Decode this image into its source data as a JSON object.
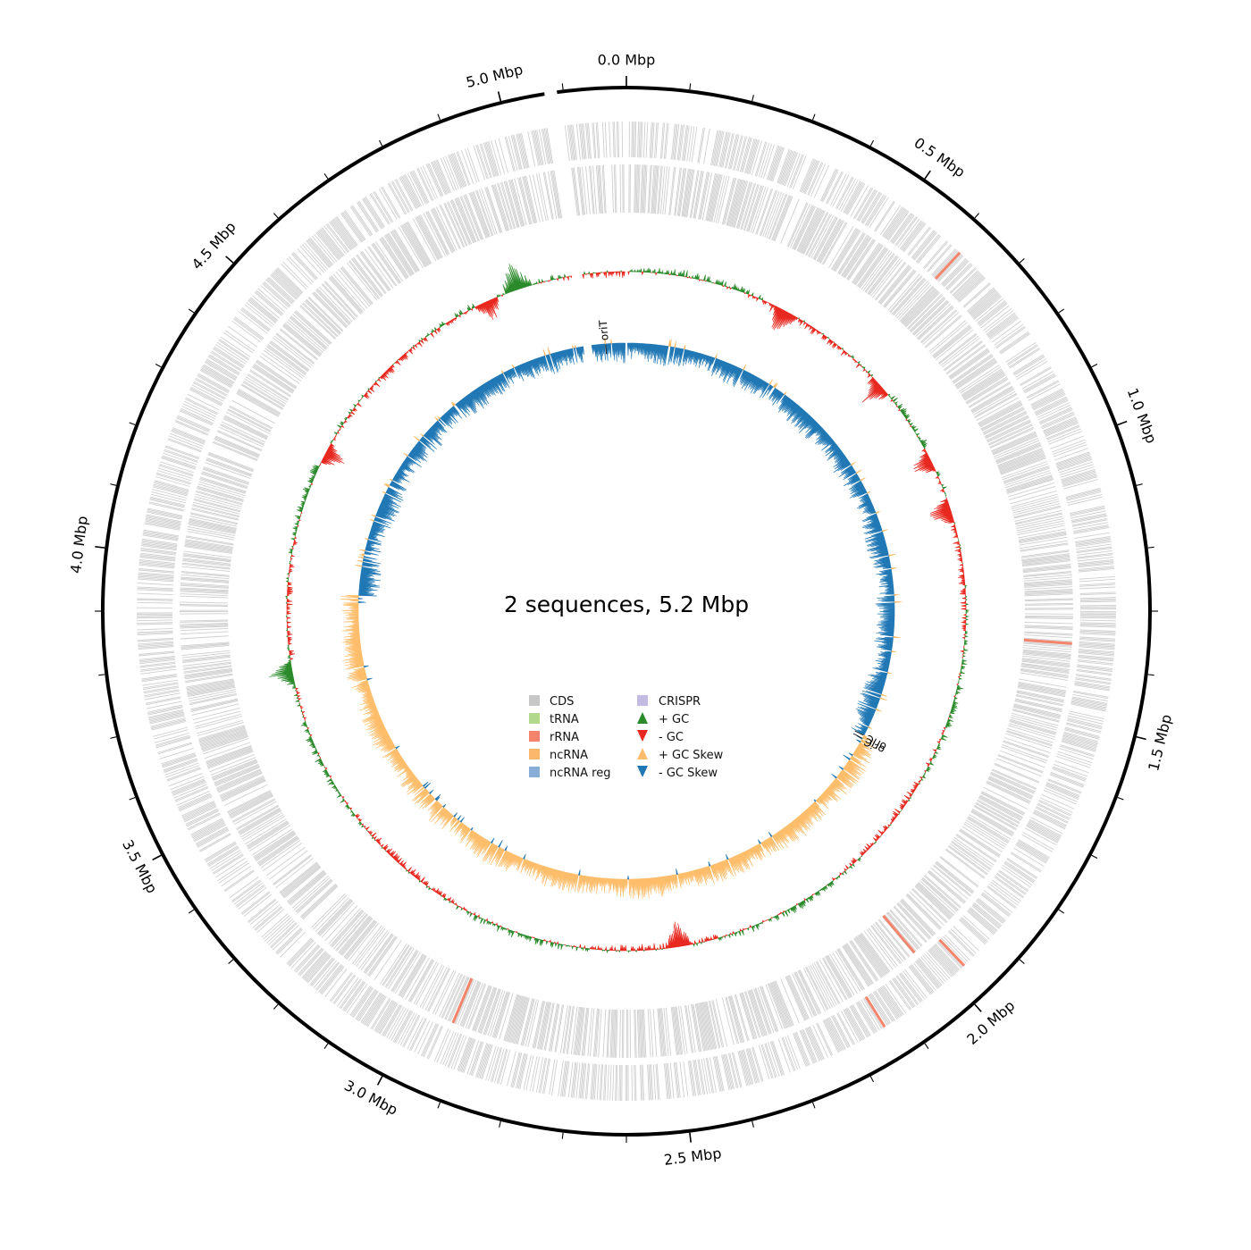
{
  "title": "2 sequences, 5.2 Mbp",
  "genome": {
    "sequence_count": 2,
    "total_size_mbp": 5.2,
    "contigs": [
      {
        "start_mbp": 0.0,
        "end_mbp": 5.07
      },
      {
        "start_mbp": 5.09,
        "end_mbp": 5.2
      }
    ]
  },
  "scale": {
    "major_ticks": [
      {
        "value": 0.0,
        "label": "0.0 Mbp"
      },
      {
        "value": 0.5,
        "label": "0.5 Mbp"
      },
      {
        "value": 1.0,
        "label": "1.0 Mbp"
      },
      {
        "value": 1.5,
        "label": "1.5 Mbp"
      },
      {
        "value": 2.0,
        "label": "2.0 Mbp"
      },
      {
        "value": 2.5,
        "label": "2.5 Mbp"
      },
      {
        "value": 3.0,
        "label": "3.0 Mbp"
      },
      {
        "value": 3.5,
        "label": "3.5 Mbp"
      },
      {
        "value": 4.0,
        "label": "4.0 Mbp"
      },
      {
        "value": 4.5,
        "label": "4.5 Mbp"
      },
      {
        "value": 5.0,
        "label": "5.0 Mbp"
      }
    ],
    "minor_tick_step_mbp": 0.1
  },
  "annotations": [
    {
      "label": "oriT",
      "position_mbp": 5.135
    },
    {
      "label": "oriC",
      "position_mbp": 1.7
    },
    {
      "label": "oriC",
      "position_mbp": 1.71
    }
  ],
  "legend": [
    {
      "label": "CDS",
      "marker": "square",
      "color": "#c7c7c7"
    },
    {
      "label": "tRNA",
      "marker": "square",
      "color": "#b2d88c"
    },
    {
      "label": "rRNA",
      "marker": "square",
      "color": "#f4846b"
    },
    {
      "label": "ncRNA",
      "marker": "square",
      "color": "#fcb86a"
    },
    {
      "label": "ncRNA reg",
      "marker": "square",
      "color": "#86aed6"
    },
    {
      "label": "CRISPR",
      "marker": "square",
      "color": "#c3bbe1"
    },
    {
      "label": "+ GC",
      "marker": "triangle-up",
      "color": "#2a8a2a"
    },
    {
      "label": "- GC",
      "marker": "triangle-down",
      "color": "#e8281f"
    },
    {
      "label": "+ GC Skew",
      "marker": "triangle-up",
      "color": "#fdbd6a"
    },
    {
      "label": "- GC Skew",
      "marker": "triangle-down",
      "color": "#1f77b4"
    }
  ],
  "chart_data": {
    "type": "circular-genome-map",
    "title": "2 sequences, 5.2 Mbp",
    "total_size_mbp": 5.2,
    "tracks": [
      "forward CDS",
      "reverse CDS",
      "GC content",
      "GC skew"
    ],
    "rrna_positions_mbp": [
      0.62,
      1.36,
      1.97,
      2.02,
      2.14,
      2.93
    ],
    "gc_content_peaks": [
      {
        "position_mbp": 0.4,
        "sign": "-"
      },
      {
        "position_mbp": 0.7,
        "sign": "-"
      },
      {
        "position_mbp": 0.92,
        "sign": "-"
      },
      {
        "position_mbp": 1.05,
        "sign": "-"
      },
      {
        "position_mbp": 2.47,
        "sign": "-"
      },
      {
        "position_mbp": 3.75,
        "sign": "+"
      },
      {
        "position_mbp": 4.3,
        "sign": "-"
      },
      {
        "position_mbp": 4.85,
        "sign": "-"
      },
      {
        "position_mbp": 4.93,
        "sign": "+"
      }
    ],
    "gc_skew_regions": [
      {
        "start_mbp": 0.0,
        "end_mbp": 1.7,
        "sign": "-"
      },
      {
        "start_mbp": 1.7,
        "end_mbp": 3.95,
        "sign": "+"
      },
      {
        "start_mbp": 3.95,
        "end_mbp": 5.2,
        "sign": "-"
      }
    ],
    "colors": {
      "cds": "#c7c7c7",
      "rrna": "#f4846b",
      "gc_plus": "#2a8a2a",
      "gc_minus": "#e8281f",
      "skew_plus": "#fdbd6a",
      "skew_minus": "#1f77b4"
    }
  }
}
